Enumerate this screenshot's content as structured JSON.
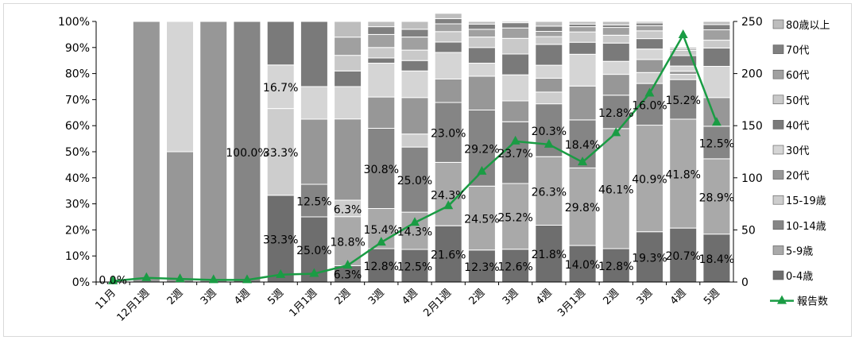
{
  "chart_data": {
    "type": "bar",
    "stacked": true,
    "secondary_type": "line",
    "categories": [
      "11月",
      "12月1週",
      "2週",
      "3週",
      "4週",
      "5週",
      "1月1週",
      "2週",
      "3週",
      "4週",
      "2月1週",
      "2週",
      "3週",
      "4週",
      "3月1週",
      "2週",
      "3週",
      "4週",
      "5週"
    ],
    "y_left": {
      "ticks": [
        "0%",
        "10%",
        "20%",
        "30%",
        "40%",
        "50%",
        "60%",
        "70%",
        "80%",
        "90%",
        "100%"
      ],
      "range": [
        0,
        100
      ]
    },
    "y_right": {
      "ticks": [
        "0",
        "50",
        "100",
        "150",
        "200",
        "250"
      ],
      "range": [
        0,
        250
      ]
    },
    "series": [
      {
        "name": "0-4歳",
        "color": "#6e6e6e",
        "values": [
          0,
          0,
          0,
          0,
          0,
          33.3,
          25.0,
          6.3,
          12.8,
          12.5,
          21.6,
          12.3,
          12.6,
          21.8,
          14.0,
          12.8,
          19.3,
          20.7,
          18.4
        ]
      },
      {
        "name": "5-9歳",
        "color": "#a9a9a9",
        "values": [
          0,
          0,
          0,
          0,
          0,
          0,
          0,
          18.8,
          15.4,
          14.3,
          24.3,
          24.5,
          25.2,
          26.3,
          29.8,
          46.1,
          40.9,
          41.8,
          28.9
        ]
      },
      {
        "name": "10-14歳",
        "color": "#858585",
        "values": [
          0,
          0,
          0,
          0,
          100.0,
          0,
          12.5,
          0,
          30.8,
          25.0,
          23.0,
          29.2,
          23.7,
          20.3,
          18.4,
          12.8,
          16.0,
          15.2,
          12.5
        ]
      },
      {
        "name": "15-19歳",
        "color": "#cdcdcd",
        "values": [
          0,
          0,
          0,
          0,
          0,
          33.3,
          0,
          6.3,
          0,
          5.0,
          0,
          0,
          0,
          4.5,
          0,
          0,
          4.2,
          2.0,
          0
        ]
      },
      {
        "name": "20代",
        "color": "#979797",
        "values": [
          0,
          100,
          50,
          100,
          0,
          0,
          25.0,
          31.2,
          12.0,
          14.0,
          9.0,
          13.0,
          8.0,
          5.3,
          13.0,
          8.0,
          5.0,
          1.2,
          11.0
        ]
      },
      {
        "name": "30代",
        "color": "#d5d5d5",
        "values": [
          0,
          0,
          50,
          0,
          0,
          16.7,
          12.5,
          12.4,
          13.0,
          10.2,
          10.2,
          5.0,
          10.0,
          5.0,
          12.2,
          5.0,
          4.0,
          2.0,
          12.0
        ]
      },
      {
        "name": "40代",
        "color": "#7a7a7a",
        "values": [
          0,
          0,
          0,
          0,
          0,
          16.7,
          25.0,
          6.0,
          2.0,
          4.0,
          4.0,
          6.0,
          8.0,
          8.0,
          4.6,
          7.0,
          4.0,
          4.0,
          7.0
        ]
      },
      {
        "name": "50代",
        "color": "#c9c9c9",
        "values": [
          0,
          0,
          0,
          0,
          0,
          0,
          0,
          6.0,
          4.0,
          4.0,
          4.0,
          4.0,
          6.0,
          3.0,
          4.0,
          3.0,
          3.0,
          2.0,
          3.0
        ]
      },
      {
        "name": "60代",
        "color": "#a0a0a0",
        "values": [
          0,
          0,
          0,
          0,
          0,
          0,
          0,
          7.0,
          5.0,
          5.0,
          3.0,
          3.0,
          4.0,
          2.0,
          2.0,
          3.0,
          2.0,
          0.6,
          4.0
        ]
      },
      {
        "name": "70代",
        "color": "#808080",
        "values": [
          0,
          0,
          0,
          0,
          0,
          0,
          0,
          0,
          3.0,
          3.0,
          2.0,
          2.0,
          2.0,
          2.0,
          1.0,
          1.0,
          1.0,
          0.5,
          2.0
        ]
      },
      {
        "name": "80歳以上",
        "color": "#bdbdbd",
        "values": [
          0,
          0,
          0,
          0,
          0,
          0,
          0,
          6.0,
          2.0,
          3.0,
          2.0,
          1.0,
          0.5,
          1.8,
          1.0,
          1.3,
          0.6,
          0,
          1.2
        ]
      }
    ],
    "line": {
      "name": "報告数",
      "color": "#1a9c44",
      "axis": "right",
      "values": [
        1,
        4,
        3,
        2,
        2,
        7,
        8,
        16,
        38,
        57,
        73,
        106,
        135,
        132,
        115,
        143,
        181,
        237,
        153
      ]
    },
    "data_labels": [
      {
        "i": 0,
        "series": 0,
        "text": "0.0%"
      },
      {
        "i": 4,
        "series": 2,
        "text": "100.0%"
      },
      {
        "i": 5,
        "series": 0,
        "text": "33.3%"
      },
      {
        "i": 5,
        "series": 3,
        "text": "33.3%"
      },
      {
        "i": 5,
        "series": 5,
        "text": "16.7%"
      },
      {
        "i": 6,
        "series": 0,
        "text": "25.0%"
      },
      {
        "i": 6,
        "series": 2,
        "text": "12.5%"
      },
      {
        "i": 7,
        "series": 0,
        "text": "6.3%"
      },
      {
        "i": 7,
        "series": 1,
        "text": "18.8%"
      },
      {
        "i": 7,
        "series": 3,
        "text": "6.3%"
      },
      {
        "i": 8,
        "series": 0,
        "text": "12.8%"
      },
      {
        "i": 8,
        "series": 1,
        "text": "15.4%"
      },
      {
        "i": 8,
        "series": 2,
        "text": "30.8%"
      },
      {
        "i": 9,
        "series": 0,
        "text": "12.5%"
      },
      {
        "i": 9,
        "series": 1,
        "text": "14.3%"
      },
      {
        "i": 9,
        "series": 2,
        "text": "25.0%"
      },
      {
        "i": 10,
        "series": 0,
        "text": "21.6%"
      },
      {
        "i": 10,
        "series": 1,
        "text": "24.3%"
      },
      {
        "i": 10,
        "series": 2,
        "text": "23.0%"
      },
      {
        "i": 11,
        "series": 0,
        "text": "12.3%"
      },
      {
        "i": 11,
        "series": 1,
        "text": "24.5%"
      },
      {
        "i": 11,
        "series": 2,
        "text": "29.2%"
      },
      {
        "i": 12,
        "series": 0,
        "text": "12.6%"
      },
      {
        "i": 12,
        "series": 1,
        "text": "25.2%"
      },
      {
        "i": 12,
        "series": 2,
        "text": "23.7%"
      },
      {
        "i": 13,
        "series": 0,
        "text": "21.8%"
      },
      {
        "i": 13,
        "series": 1,
        "text": "26.3%"
      },
      {
        "i": 13,
        "series": 2,
        "text": "20.3%"
      },
      {
        "i": 14,
        "series": 0,
        "text": "14.0%"
      },
      {
        "i": 14,
        "series": 1,
        "text": "29.8%"
      },
      {
        "i": 14,
        "series": 2,
        "text": "18.4%"
      },
      {
        "i": 15,
        "series": 0,
        "text": "12.8%"
      },
      {
        "i": 15,
        "series": 1,
        "text": "46.1%"
      },
      {
        "i": 15,
        "series": 2,
        "text": "12.8%"
      },
      {
        "i": 16,
        "series": 0,
        "text": "19.3%"
      },
      {
        "i": 16,
        "series": 1,
        "text": "40.9%"
      },
      {
        "i": 16,
        "series": 2,
        "text": "16.0%"
      },
      {
        "i": 17,
        "series": 0,
        "text": "20.7%"
      },
      {
        "i": 17,
        "series": 1,
        "text": "41.8%"
      },
      {
        "i": 17,
        "series": 2,
        "text": "15.2%"
      },
      {
        "i": 18,
        "series": 0,
        "text": "18.4%"
      },
      {
        "i": 18,
        "series": 1,
        "text": "28.9%"
      },
      {
        "i": 18,
        "series": 2,
        "text": "12.5%"
      }
    ],
    "legend": {
      "position": "right",
      "entries": [
        "80歳以上",
        "70代",
        "60代",
        "50代",
        "40代",
        "30代",
        "20代",
        "15-19歳",
        "10-14歳",
        "5-9歳",
        "0-4歳",
        "報告数"
      ]
    },
    "grid": false
  }
}
